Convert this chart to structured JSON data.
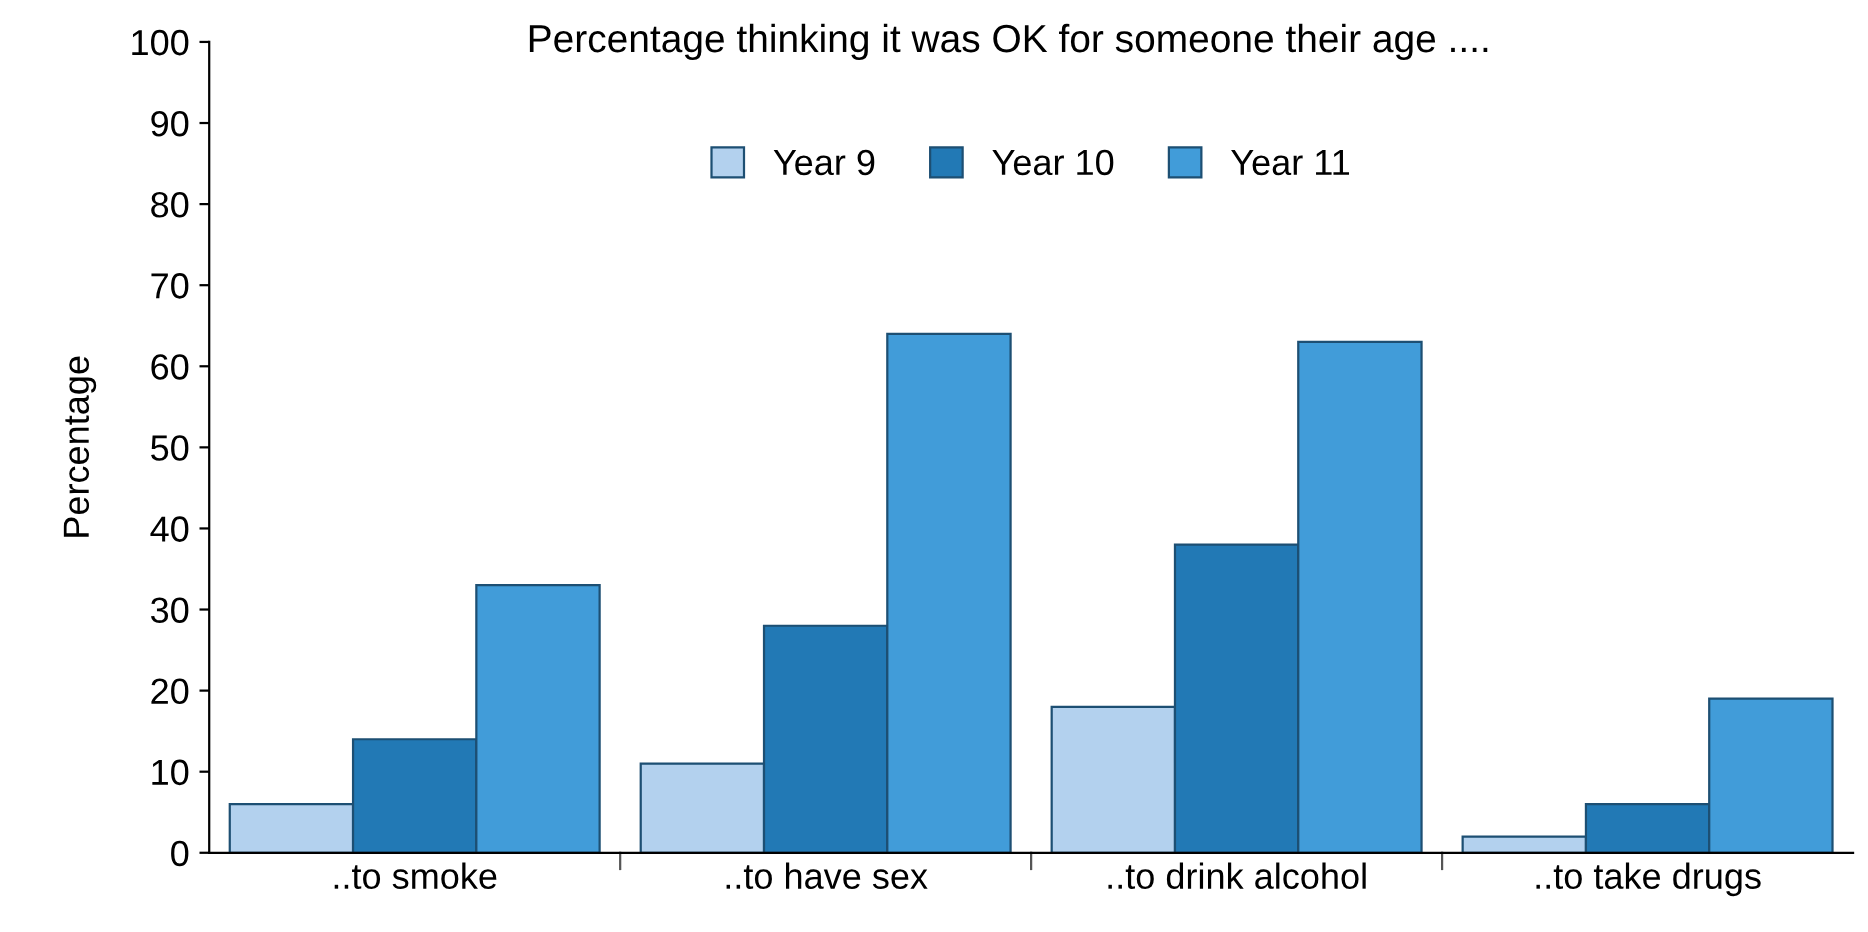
{
  "chart_data": {
    "type": "bar",
    "title": "Percentage thinking it was OK for someone their age ....",
    "ylabel": "Percentage",
    "categories": [
      "..to smoke",
      "..to have sex",
      "..to drink alcohol",
      "..to take drugs"
    ],
    "series": [
      {
        "name": "Year 9",
        "color": "#b3d1ee",
        "values": [
          6,
          11,
          18,
          2
        ]
      },
      {
        "name": "Year 10",
        "color": "#2279b5",
        "values": [
          14,
          28,
          38,
          6
        ]
      },
      {
        "name": "Year 11",
        "color": "#419cd9",
        "values": [
          33,
          64,
          63,
          19
        ]
      }
    ],
    "ylim": [
      0,
      100
    ],
    "yticks": [
      0,
      10,
      20,
      30,
      40,
      50,
      60,
      70,
      80,
      90,
      100
    ],
    "grid": false,
    "legend": "top"
  }
}
